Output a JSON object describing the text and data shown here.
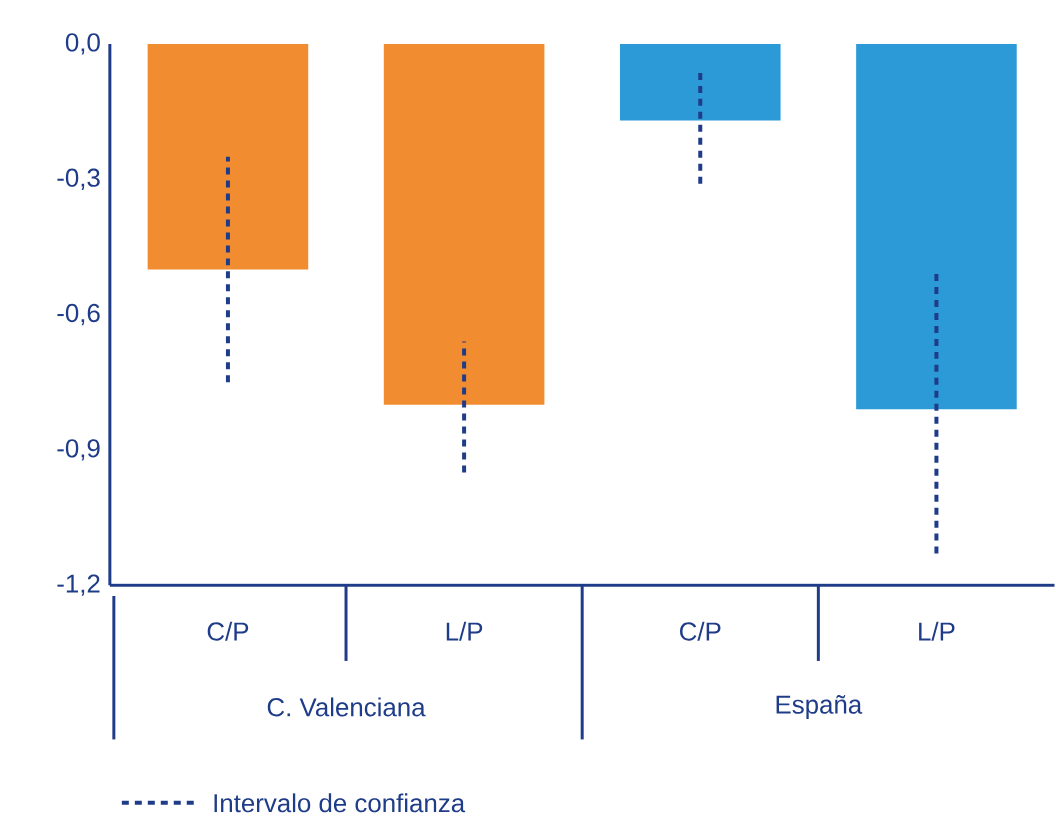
{
  "chart_data": {
    "type": "bar",
    "categories": [
      "C/P",
      "L/P",
      "C/P",
      "L/P"
    ],
    "values": [
      -0.5,
      -0.8,
      -0.17,
      -0.81
    ],
    "colors": [
      "#f28c30",
      "#f28c30",
      "#2d9ad8",
      "#2d9ad8"
    ],
    "errors": [
      [
        -0.75,
        -0.25
      ],
      [
        -0.95,
        -0.66
      ],
      [
        -0.31,
        -0.06
      ],
      [
        -1.13,
        -0.5
      ]
    ],
    "ylim": [
      -1.2,
      0
    ],
    "yticks": [
      {
        "value": 0,
        "label": "0,0"
      },
      {
        "value": -0.3,
        "label": "-0,3"
      },
      {
        "value": -0.6,
        "label": "-0,6"
      },
      {
        "value": -0.9,
        "label": "-0,9"
      },
      {
        "value": -1.2,
        "label": "-1,2"
      }
    ],
    "annotations": [
      "C. Valenciana",
      "España",
      "Intervalo de confianza"
    ]
  }
}
